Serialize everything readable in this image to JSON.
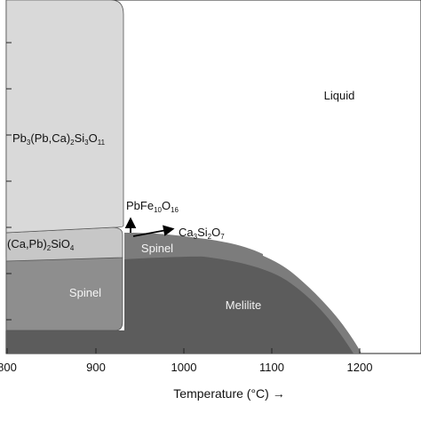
{
  "chart_data": {
    "type": "phase-diagram",
    "xlabel": "Temperature (°C) →",
    "x_ticks": [
      "800",
      "900",
      "1000",
      "1100",
      "1200"
    ],
    "regions": [
      {
        "id": "pb-silicate",
        "label_parts": [
          [
            "Pb",
            "3",
            "(Pb,Ca)",
            "2",
            "Si",
            "3",
            "O",
            "11"
          ]
        ],
        "color": "#d9d9d9"
      },
      {
        "id": "capb-sio4",
        "label_parts": [
          [
            "(Ca,Pb)",
            "2",
            "SiO",
            "4"
          ]
        ],
        "color": "#c7c7c7"
      },
      {
        "id": "spinel-left",
        "label": "Spinel",
        "color": "#8e8e8e"
      },
      {
        "id": "spinel-right",
        "label": "Spinel",
        "color": "#7c7c7c"
      },
      {
        "id": "melilite",
        "label": "Melilite",
        "color": "#5c5c5c"
      },
      {
        "id": "liquid",
        "label": "Liquid",
        "color": "#ffffff"
      }
    ],
    "annotations": [
      {
        "id": "pbfe-arrow",
        "parts": [
          "PbFe",
          "10",
          "O",
          "16"
        ]
      },
      {
        "id": "ca3-arrow",
        "parts": [
          "Ca",
          "3",
          "Si",
          "2",
          "O",
          "7"
        ]
      }
    ]
  }
}
